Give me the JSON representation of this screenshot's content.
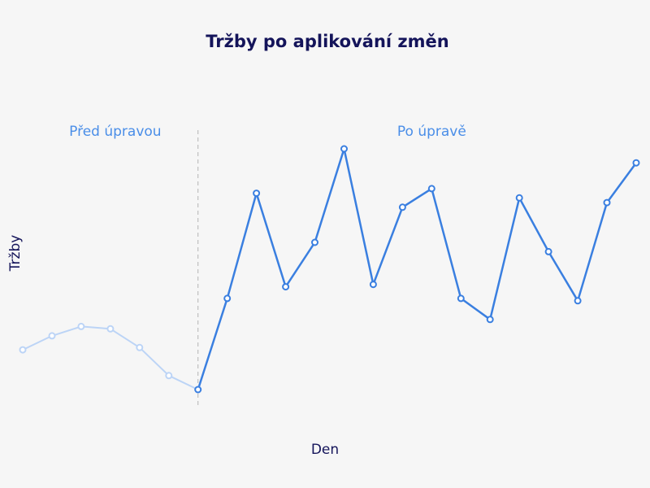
{
  "chart_data": {
    "type": "line",
    "title": "Tržby po aplikování změn",
    "xlabel": "Den",
    "ylabel": "Tržby",
    "grid": false,
    "x": [
      1,
      2,
      3,
      4,
      5,
      6,
      7,
      8,
      9,
      10,
      11,
      12,
      13,
      14,
      15,
      16,
      17,
      18,
      19,
      20,
      21,
      22
    ],
    "ylim": [
      0,
      100
    ],
    "change_at_x": 7,
    "regions": [
      {
        "label": "Před úpravou",
        "from": 1,
        "to": 7,
        "color": "#4a8ee8"
      },
      {
        "label": "Po úpravě",
        "from": 7,
        "to": 22,
        "color": "#4a8ee8"
      }
    ],
    "series": [
      {
        "segment": "before",
        "color": "#bcd4f6",
        "x": [
          1,
          2,
          3,
          4,
          5,
          6,
          7
        ],
        "values": [
          27,
          33,
          37,
          36,
          28,
          16,
          10
        ]
      },
      {
        "segment": "after",
        "color": "#3a7fe0",
        "x": [
          7,
          8,
          9,
          10,
          11,
          12,
          13,
          14,
          15,
          16,
          17,
          18,
          19,
          20,
          21,
          22
        ],
        "values": [
          10,
          49,
          94,
          54,
          73,
          113,
          55,
          88,
          96,
          49,
          40,
          92,
          69,
          48,
          90,
          107
        ]
      }
    ]
  }
}
